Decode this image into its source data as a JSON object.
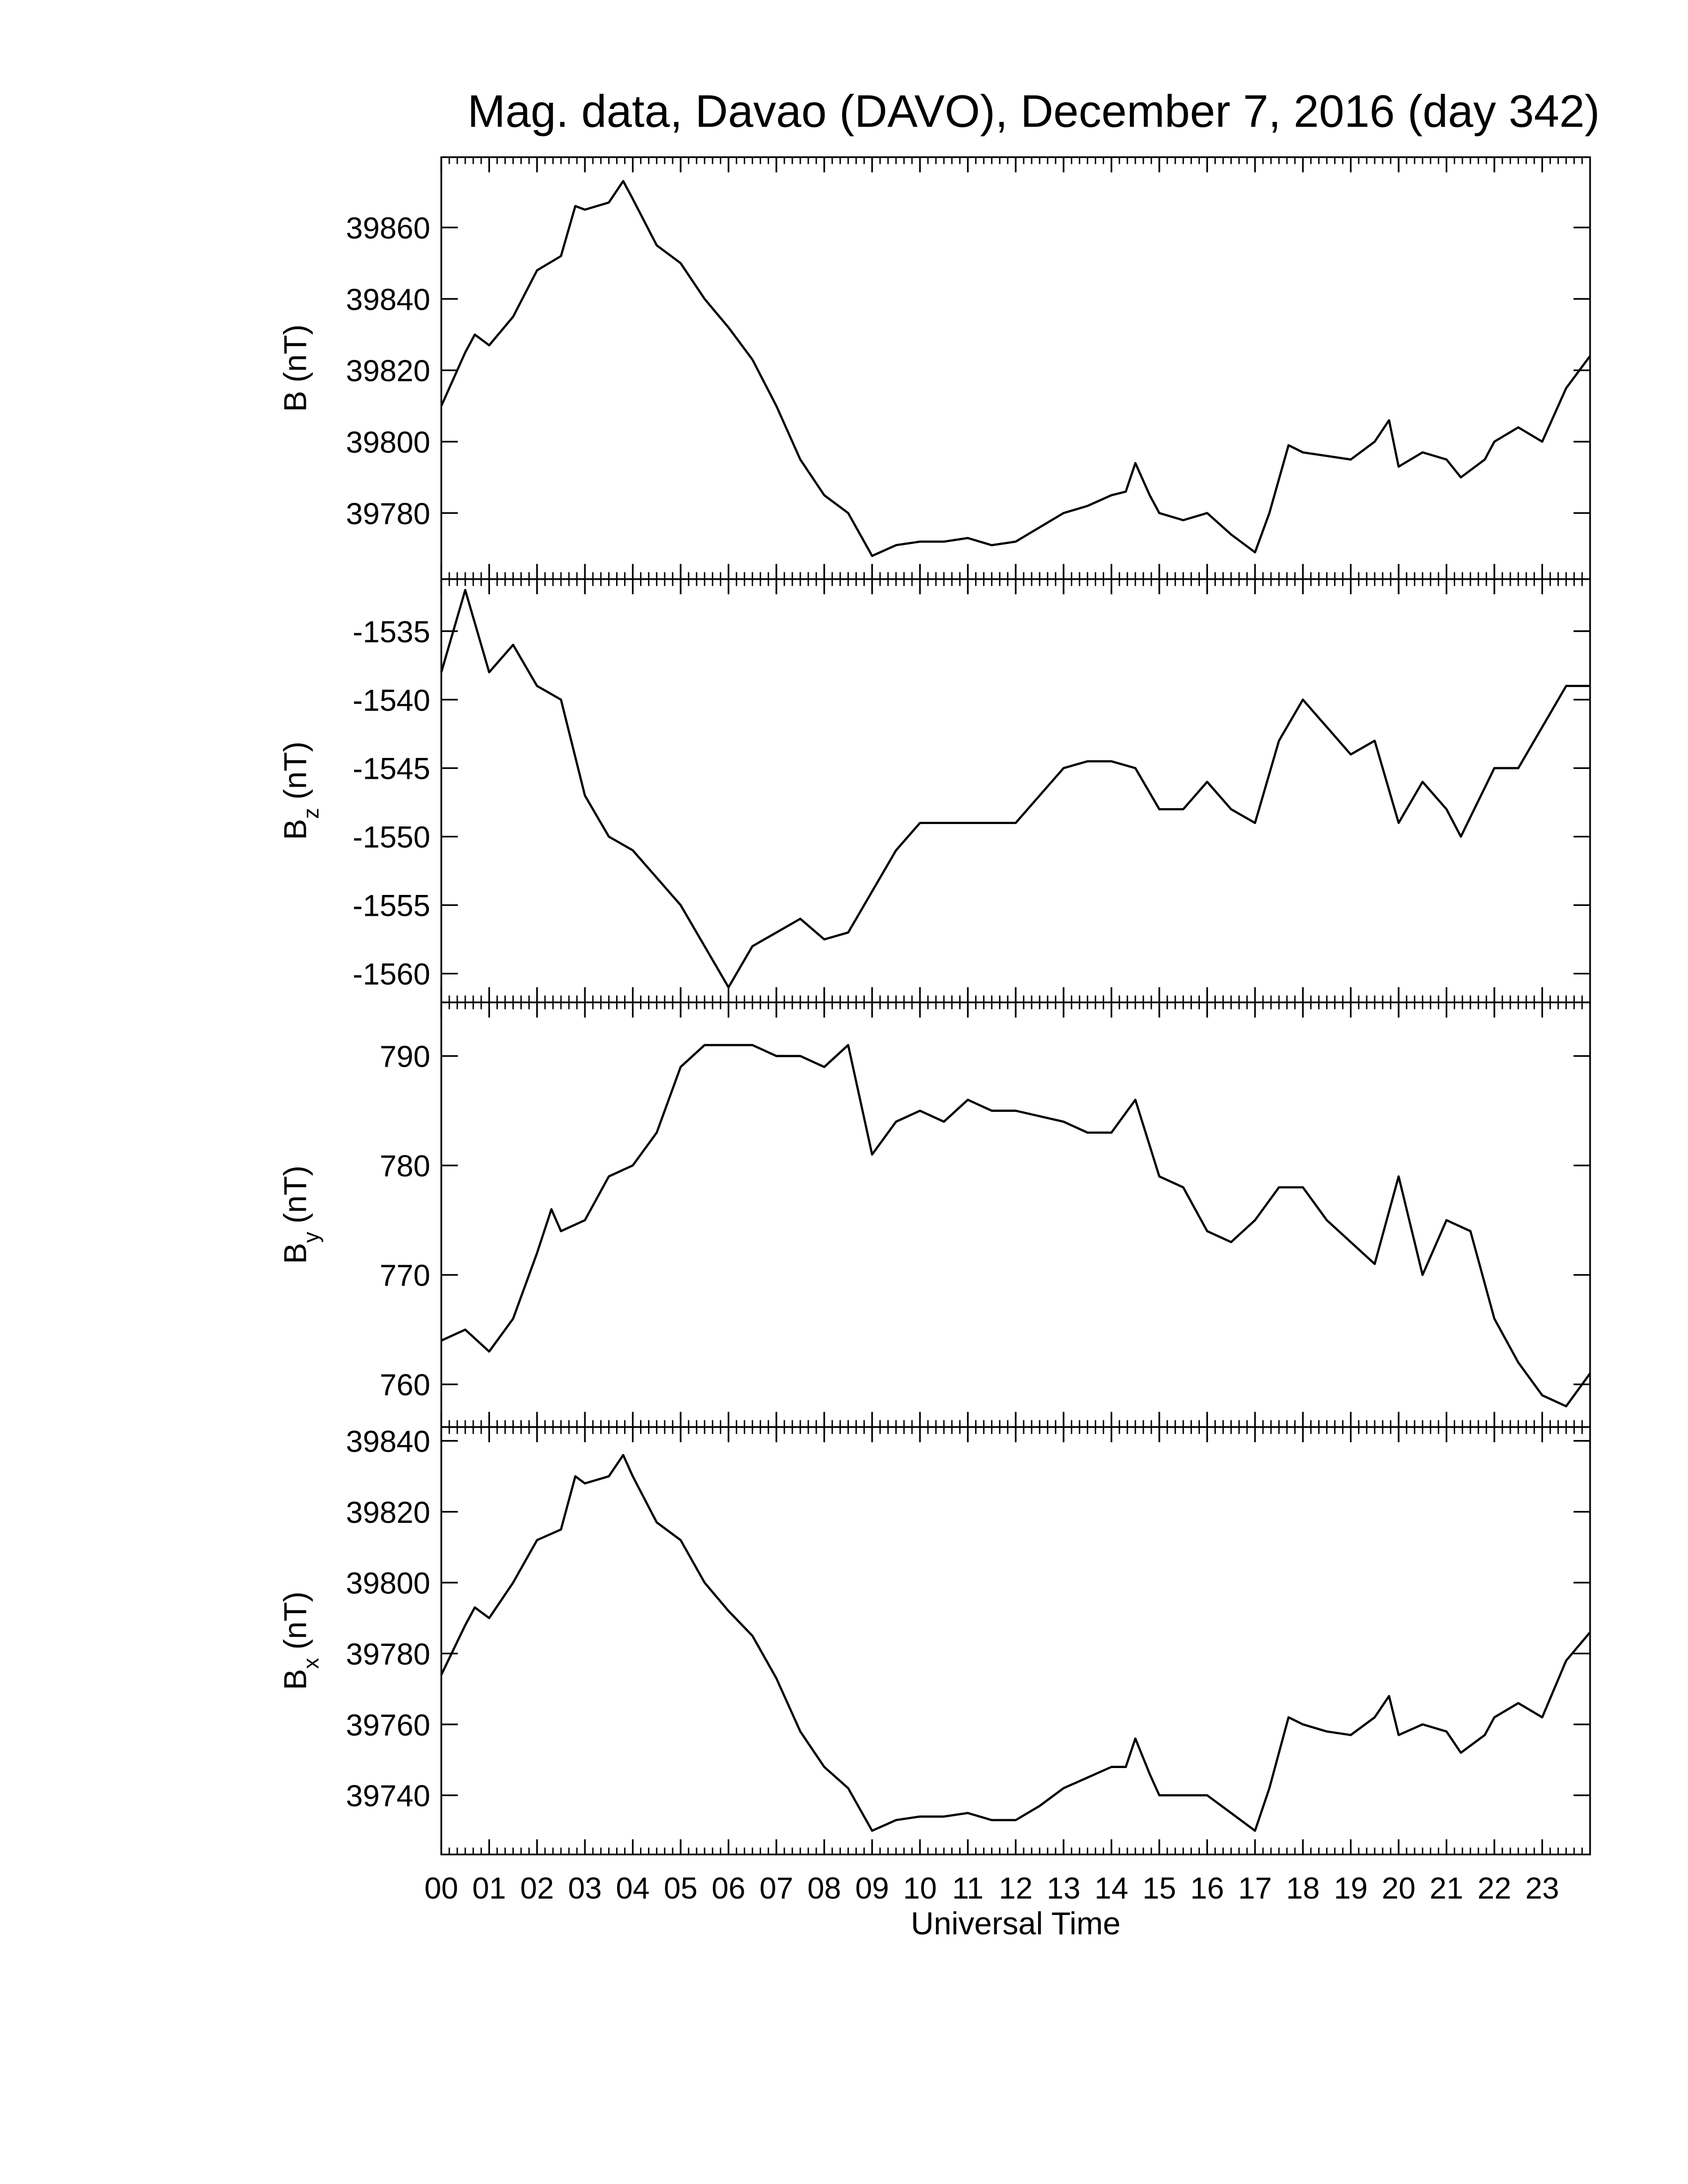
{
  "chart_data": [
    {
      "type": "line",
      "title": "Mag. data, Davao (DAVO), December 7, 2016 (day 342)",
      "ylabel": "B",
      "ylabel_unit": "(nT)",
      "color": "#000000",
      "xlim": [
        0,
        24
      ],
      "ylim": [
        39761.5,
        39879.7
      ],
      "yticks": [
        39780,
        39800,
        39820,
        39840,
        39860
      ],
      "x": [
        0,
        0.5,
        0.7,
        1,
        1.5,
        2,
        2.5,
        2.8,
        3,
        3.5,
        3.8,
        4,
        4.5,
        5,
        5.5,
        6,
        6.5,
        7,
        7.5,
        8,
        8.5,
        9,
        9.5,
        10,
        10.5,
        11,
        11.5,
        12,
        12.5,
        13,
        13.5,
        14,
        14.3,
        14.5,
        14.8,
        15,
        15.5,
        16,
        16.5,
        17,
        17.3,
        17.7,
        18,
        18.5,
        19,
        19.5,
        19.8,
        20,
        20.5,
        21,
        21.3,
        21.8,
        22,
        22.5,
        23,
        23.5,
        24
      ],
      "values": [
        39810,
        39825,
        39830,
        39827,
        39835,
        39848,
        39852,
        39866,
        39865,
        39867,
        39873,
        39868,
        39855,
        39850,
        39840,
        39832,
        39823,
        39810,
        39795,
        39785,
        39780,
        39768,
        39771,
        39772,
        39772,
        39773,
        39771,
        39772,
        39776,
        39780,
        39782,
        39785,
        39786,
        39794,
        39785,
        39780,
        39778,
        39780,
        39774,
        39769,
        39780,
        39799,
        39797,
        39796,
        39795,
        39800,
        39806,
        39793,
        39797,
        39795,
        39790,
        39795,
        39800,
        39804,
        39800,
        39815,
        39824
      ]
    },
    {
      "type": "line",
      "ylabel": "B",
      "ylabel_subscript": "z",
      "ylabel_unit": "(nT)",
      "color": "#000000",
      "xlim": [
        0,
        24
      ],
      "ylim": [
        -1562.1,
        -1531.2
      ],
      "yticks": [
        -1560,
        -1555,
        -1550,
        -1545,
        -1540,
        -1535
      ],
      "x": [
        0,
        0.5,
        1,
        1.5,
        2,
        2.5,
        3,
        3.5,
        4,
        4.5,
        5,
        5.5,
        6,
        6.5,
        7,
        7.5,
        8,
        8.5,
        9,
        9.5,
        10,
        11,
        12,
        12.5,
        13,
        13.5,
        14,
        14.5,
        15,
        15.5,
        16,
        16.5,
        17,
        17.5,
        18,
        18.5,
        19,
        19.5,
        20,
        20.5,
        21,
        21.3,
        22,
        22.5,
        23,
        23.5,
        24
      ],
      "values": [
        -1538,
        -1532,
        -1538,
        -1536,
        -1539,
        -1540,
        -1547,
        -1550,
        -1551,
        -1553,
        -1555,
        -1558,
        -1561,
        -1558,
        -1557,
        -1556,
        -1557.5,
        -1557,
        -1554,
        -1551,
        -1549,
        -1549,
        -1549,
        -1547,
        -1545,
        -1544.5,
        -1544.5,
        -1545,
        -1548,
        -1548,
        -1546,
        -1548,
        -1549,
        -1543,
        -1540,
        -1542,
        -1544,
        -1543,
        -1549,
        -1546,
        -1548,
        -1550,
        -1545,
        -1545,
        -1542,
        -1539,
        -1539
      ]
    },
    {
      "type": "line",
      "ylabel": "B",
      "ylabel_subscript": "y",
      "ylabel_unit": "(nT)",
      "color": "#000000",
      "xlim": [
        0,
        24
      ],
      "ylim": [
        756.1,
        794.9
      ],
      "yticks": [
        760,
        770,
        780,
        790
      ],
      "x": [
        0,
        0.5,
        1,
        1.5,
        2,
        2.3,
        2.5,
        3,
        3.5,
        4,
        4.5,
        5,
        5.5,
        6,
        6.5,
        7,
        7.5,
        8,
        8.5,
        9,
        9.5,
        10,
        10.5,
        11,
        11.5,
        12,
        13,
        13.5,
        14,
        14.5,
        15,
        15.5,
        16,
        16.5,
        17,
        17.5,
        18,
        18.5,
        19,
        19.5,
        20,
        20.5,
        21,
        21.5,
        22,
        22.5,
        23,
        23.5,
        24
      ],
      "values": [
        764,
        765,
        763,
        766,
        772,
        776,
        774,
        775,
        779,
        780,
        783,
        789,
        791,
        791,
        791,
        790,
        790,
        789,
        791,
        781,
        784,
        785,
        784,
        786,
        785,
        785,
        784,
        783,
        783,
        786,
        779,
        778,
        774,
        773,
        775,
        778,
        778,
        775,
        773,
        771,
        779,
        770,
        775,
        774,
        766,
        762,
        759,
        758,
        761
      ]
    },
    {
      "type": "line",
      "ylabel": "B",
      "ylabel_subscript": "x",
      "ylabel_unit": "(nT)",
      "xlabel": "Universal Time",
      "color": "#000000",
      "xlim": [
        0,
        24
      ],
      "ylim": [
        39723.3,
        39843.9
      ],
      "yticks": [
        39740,
        39760,
        39780,
        39800,
        39820,
        39840
      ],
      "xticks": [
        {
          "value": 0,
          "label": "00"
        },
        {
          "value": 1,
          "label": "01"
        },
        {
          "value": 2,
          "label": "02"
        },
        {
          "value": 3,
          "label": "03"
        },
        {
          "value": 4,
          "label": "04"
        },
        {
          "value": 5,
          "label": "05"
        },
        {
          "value": 6,
          "label": "06"
        },
        {
          "value": 7,
          "label": "07"
        },
        {
          "value": 8,
          "label": "08"
        },
        {
          "value": 9,
          "label": "09"
        },
        {
          "value": 10,
          "label": "10"
        },
        {
          "value": 11,
          "label": "11"
        },
        {
          "value": 12,
          "label": "12"
        },
        {
          "value": 13,
          "label": "13"
        },
        {
          "value": 14,
          "label": "14"
        },
        {
          "value": 15,
          "label": "15"
        },
        {
          "value": 16,
          "label": "16"
        },
        {
          "value": 17,
          "label": "17"
        },
        {
          "value": 18,
          "label": "18"
        },
        {
          "value": 19,
          "label": "19"
        },
        {
          "value": 20,
          "label": "20"
        },
        {
          "value": 21,
          "label": "21"
        },
        {
          "value": 22,
          "label": "22"
        },
        {
          "value": 23,
          "label": "23"
        }
      ],
      "x": [
        0,
        0.5,
        0.7,
        1,
        1.5,
        2,
        2.5,
        2.8,
        3,
        3.5,
        3.8,
        4,
        4.5,
        5,
        5.5,
        6,
        6.5,
        7,
        7.5,
        8,
        8.5,
        9,
        9.5,
        10,
        10.5,
        11,
        11.5,
        12,
        12.5,
        13,
        13.5,
        14,
        14.3,
        14.5,
        14.8,
        15,
        15.5,
        16,
        16.5,
        17,
        17.3,
        17.7,
        18,
        18.5,
        19,
        19.5,
        19.8,
        20,
        20.5,
        21,
        21.3,
        21.8,
        22,
        22.5,
        23,
        23.5,
        24
      ],
      "values": [
        39774,
        39788,
        39793,
        39790,
        39800,
        39812,
        39815,
        39830,
        39828,
        39830,
        39836,
        39830,
        39817,
        39812,
        39800,
        39792,
        39785,
        39773,
        39758,
        39748,
        39742,
        39730,
        39733,
        39734,
        39734,
        39735,
        39733,
        39733,
        39737,
        39742,
        39745,
        39748,
        39748,
        39756,
        39746,
        39740,
        39740,
        39740,
        39735,
        39730,
        39742,
        39762,
        39760,
        39758,
        39757,
        39762,
        39768,
        39757,
        39760,
        39758,
        39752,
        39757,
        39762,
        39766,
        39762,
        39778,
        39786
      ]
    }
  ]
}
